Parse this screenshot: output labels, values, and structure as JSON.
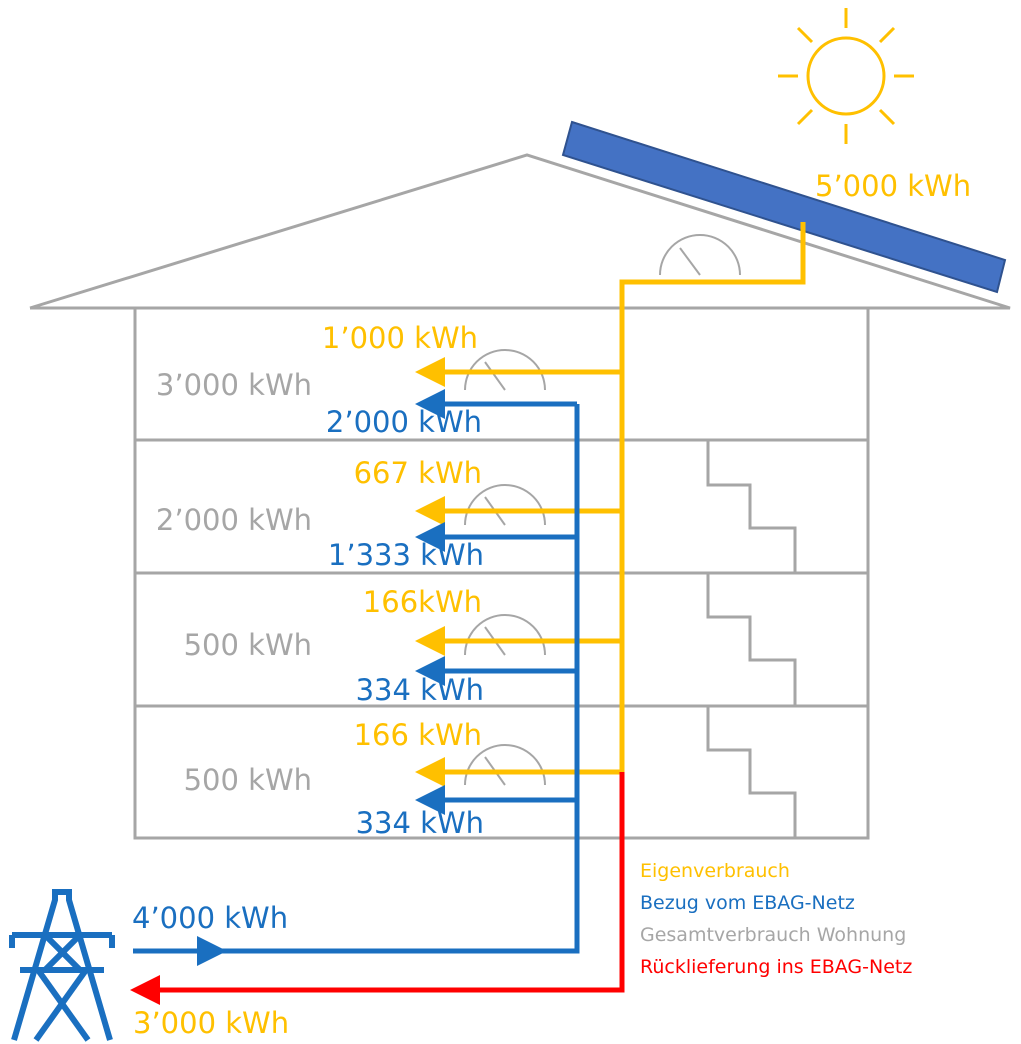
{
  "solar": {
    "label": "5’000 kWh"
  },
  "floors": [
    {
      "total": "3’000 kWh",
      "self": "1’000 kWh",
      "grid": "2’000 kWh"
    },
    {
      "total": "2’000 kWh",
      "self": "667 kWh",
      "grid": "1’333 kWh"
    },
    {
      "total": "500 kWh",
      "self": "166kWh",
      "grid": "334 kWh"
    },
    {
      "total": "500 kWh",
      "self": "166 kWh",
      "grid": "334 kWh"
    }
  ],
  "grid_import": "4’000 kWh",
  "grid_export": "3’000 kWh",
  "legend": [
    "Eigenverbrauch",
    "Bezug vom EBAG-Netz",
    "Gesamtverbrauch Wohnung",
    "Rücklieferung ins EBAG-Netz"
  ]
}
